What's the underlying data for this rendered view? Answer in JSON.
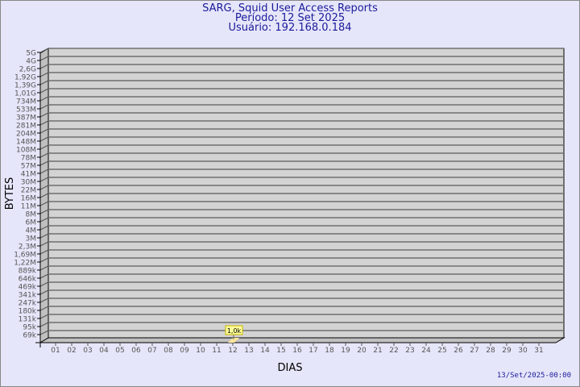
{
  "chart_data": {
    "type": "bar",
    "title": "SARG, Squid User Access Reports",
    "subtitle_period": "Período: 12 Set 2025",
    "subtitle_user": "Usuário: 192.168.0.184",
    "xlabel": "DIAS",
    "ylabel": "BYTES",
    "y_scale": "log",
    "grid": true,
    "categories": [
      "01",
      "02",
      "03",
      "04",
      "05",
      "06",
      "07",
      "08",
      "09",
      "10",
      "11",
      "12",
      "13",
      "14",
      "15",
      "16",
      "17",
      "18",
      "19",
      "20",
      "21",
      "22",
      "23",
      "24",
      "25",
      "26",
      "27",
      "28",
      "29",
      "30",
      "31"
    ],
    "y_tick_labels": [
      "5G",
      "4G",
      "2,6G",
      "1,92G",
      "1,39G",
      "1,01G",
      "734M",
      "533M",
      "387M",
      "281M",
      "204M",
      "148M",
      "108M",
      "78M",
      "57M",
      "41M",
      "30M",
      "22M",
      "16M",
      "11M",
      "8M",
      "6M",
      "4M",
      "3M",
      "2,3M",
      "1,69M",
      "1,22M",
      "889k",
      "646k",
      "469k",
      "341k",
      "247k",
      "180k",
      "131k",
      "95k",
      "69k"
    ],
    "points": [
      {
        "x": "12",
        "y": 1000,
        "label": "1,0k"
      }
    ],
    "colors": {
      "plot": "#d3d3d3",
      "side": "#c0c0c0",
      "bar": "#ffe699",
      "label_bg": "#ffff99",
      "label_border": "#c8b400",
      "title": "#1a1a9a",
      "background": "#e6e6fa"
    }
  },
  "footer": {
    "timestamp": "13/Set/2025-00:00"
  }
}
